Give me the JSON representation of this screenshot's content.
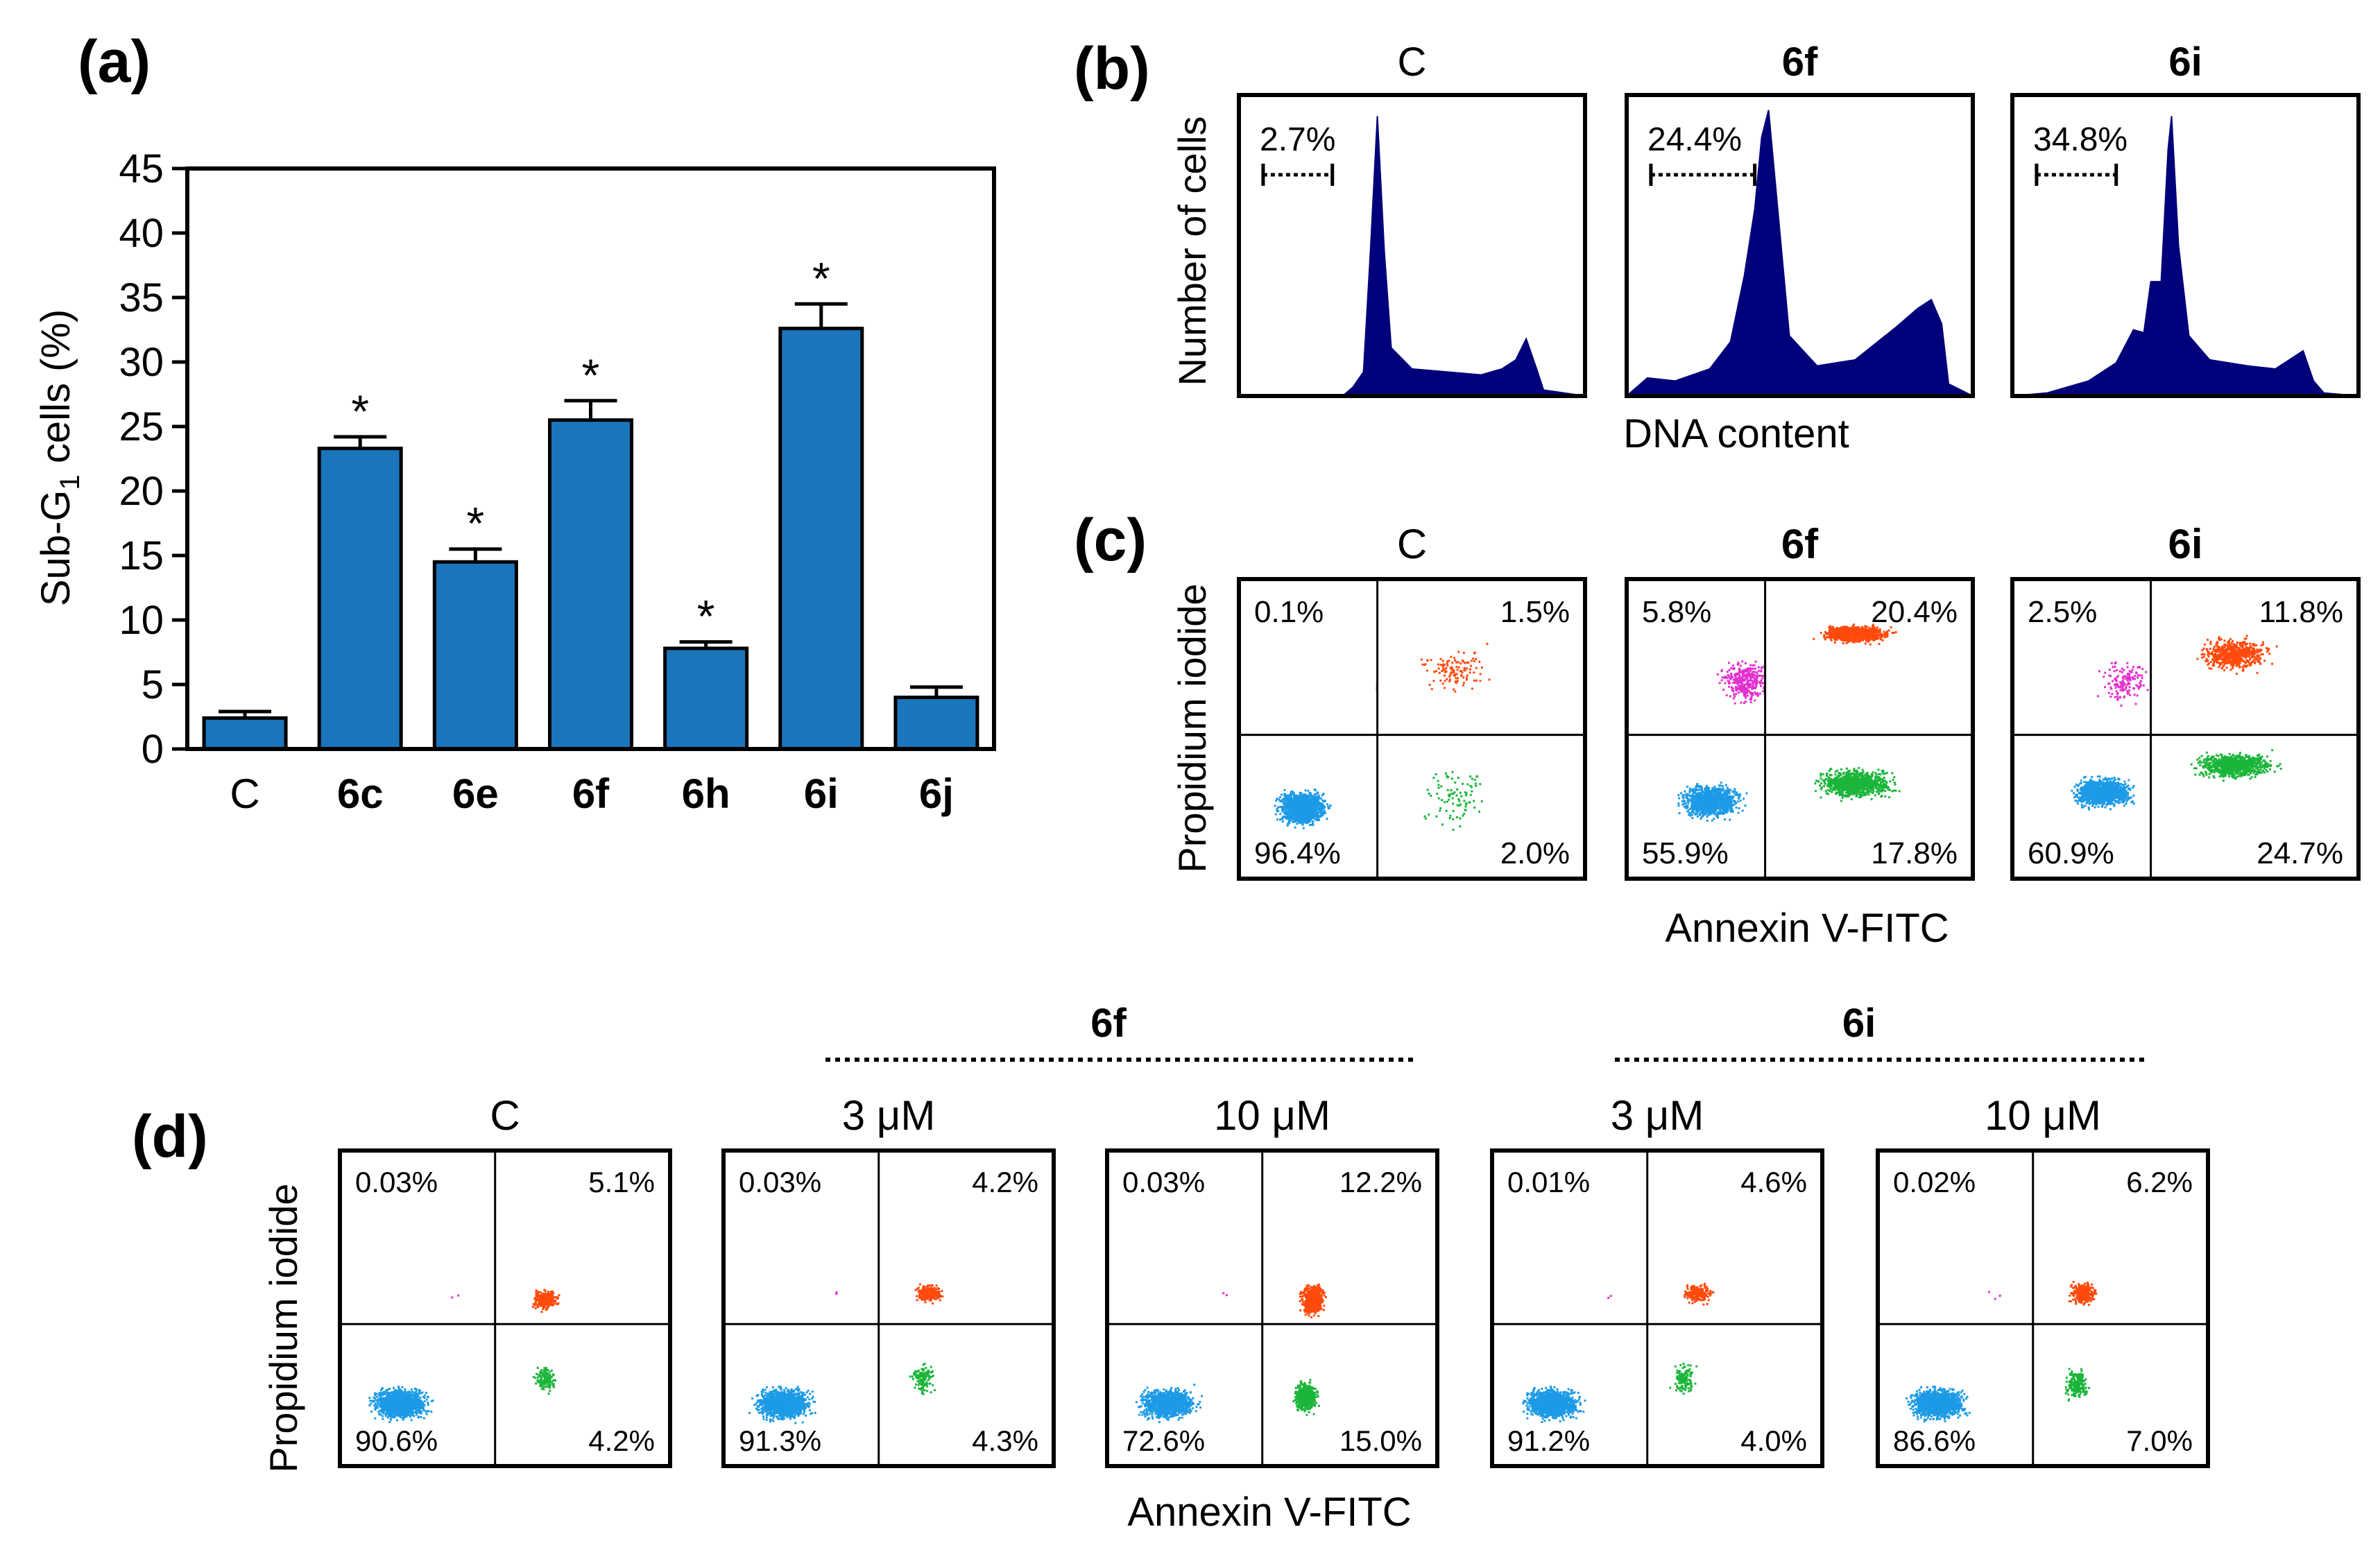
{
  "figure_caption_labels": {
    "a": "(a)",
    "b": "(b)",
    "c": "(c)",
    "d": "(d)"
  },
  "colors": {
    "bar": "#1B75BB",
    "histogram": "#00007A",
    "live": "#1C9AE6",
    "early_apoptotic": "#1BB53A",
    "late_apoptotic": "#FF4A0D",
    "necrotic": "#E331CF"
  },
  "chart_data": [
    {
      "panel": "a",
      "type": "bar",
      "ylabel_prefix": "Sub-G",
      "ylabel_subscript": "1",
      "ylabel_suffix": " cells (%)",
      "xlabel": "",
      "ylim": [
        0,
        45
      ],
      "yticks": [
        0,
        5,
        10,
        15,
        20,
        25,
        30,
        35,
        40,
        45
      ],
      "categories": [
        "C",
        "6c",
        "6e",
        "6f",
        "6h",
        "6i",
        "6j"
      ],
      "bold_categories": [
        false,
        true,
        true,
        true,
        true,
        true,
        true
      ],
      "values": [
        2.4,
        23.3,
        14.5,
        25.5,
        7.8,
        32.6,
        4.0
      ],
      "errors": [
        0.5,
        0.9,
        1.0,
        1.5,
        0.5,
        1.9,
        0.8
      ],
      "significance": [
        "",
        "*",
        "*",
        "*",
        "*",
        "*",
        ""
      ]
    },
    {
      "panel": "b",
      "type": "area",
      "xlabel": "DNA content",
      "ylabel": "Number of cells",
      "plots": [
        {
          "title": "C",
          "bold": false,
          "subg1": "2.7%"
        },
        {
          "title": "6f",
          "bold": true,
          "subg1": "24.4%"
        },
        {
          "title": "6i",
          "bold": true,
          "subg1": "34.8%"
        }
      ]
    },
    {
      "panel": "c",
      "type": "scatter",
      "xlabel": "Annexin V-FITC",
      "ylabel": "Propidium iodide",
      "plots": [
        {
          "title": "C",
          "bold": false,
          "ul": "0.1%",
          "ur": "1.5%",
          "ll": "96.4%",
          "lr": "2.0%"
        },
        {
          "title": "6f",
          "bold": true,
          "ul": "5.8%",
          "ur": "20.4%",
          "ll": "55.9%",
          "lr": "17.8%"
        },
        {
          "title": "6i",
          "bold": true,
          "ul": "2.5%",
          "ur": "11.8%",
          "ll": "60.9%",
          "lr": "24.7%"
        }
      ]
    },
    {
      "panel": "d",
      "type": "scatter",
      "xlabel": "Annexin V-FITC",
      "ylabel": "Propidium iodide",
      "groups": [
        {
          "label": "6f"
        },
        {
          "label": "6i"
        }
      ],
      "plots": [
        {
          "title": "C",
          "ul": "0.03%",
          "ur": "5.1%",
          "ll": "90.6%",
          "lr": "4.2%"
        },
        {
          "title": "3 μM",
          "ul": "0.03%",
          "ur": "4.2%",
          "ll": "91.3%",
          "lr": "4.3%"
        },
        {
          "title": "10 μM",
          "ul": "0.03%",
          "ur": "12.2%",
          "ll": "72.6%",
          "lr": "15.0%"
        },
        {
          "title": "3 μM",
          "ul": "0.01%",
          "ur": "4.6%",
          "ll": "91.2%",
          "lr": "4.0%"
        },
        {
          "title": "10 μM",
          "ul": "0.02%",
          "ur": "6.2%",
          "ll": "86.6%",
          "lr": "7.0%"
        }
      ]
    }
  ]
}
